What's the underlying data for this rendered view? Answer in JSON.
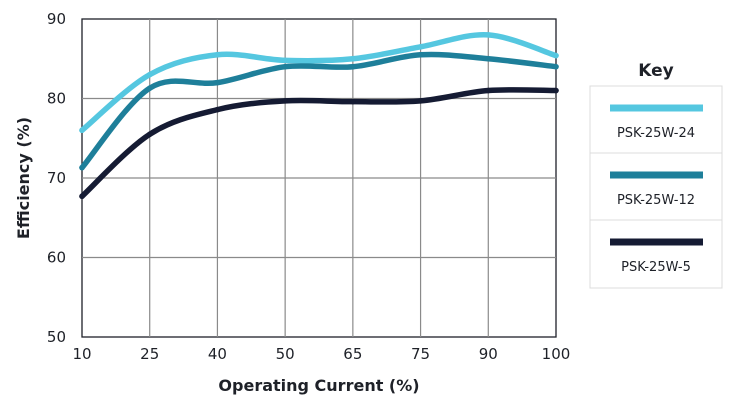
{
  "chart_data": {
    "type": "line",
    "title": "",
    "xlabel": "Operating Current  (%)",
    "ylabel": "Efficiency (%)",
    "x": [
      10,
      25,
      40,
      50,
      65,
      75,
      90,
      100
    ],
    "x_tick_labels": [
      "10",
      "25",
      "40",
      "50",
      "65",
      "75",
      "90",
      "100"
    ],
    "y_ticks": [
      50,
      60,
      70,
      80,
      90
    ],
    "ylim": [
      50,
      90
    ],
    "grid": true,
    "legend": {
      "title": "Key",
      "placement": "right"
    },
    "series": [
      {
        "name": "PSK-25W-24",
        "color": "#55c7e0",
        "values": [
          76,
          83,
          85.5,
          84.8,
          85,
          86.5,
          88,
          85.4
        ]
      },
      {
        "name": "PSK-25W-12",
        "color": "#1e7f9a",
        "values": [
          71.3,
          81.3,
          82,
          84,
          84,
          85.5,
          85,
          84
        ]
      },
      {
        "name": "PSK-25W-5",
        "color": "#151b33",
        "values": [
          67.7,
          75.5,
          78.6,
          79.7,
          79.6,
          79.7,
          81,
          81
        ]
      }
    ]
  }
}
